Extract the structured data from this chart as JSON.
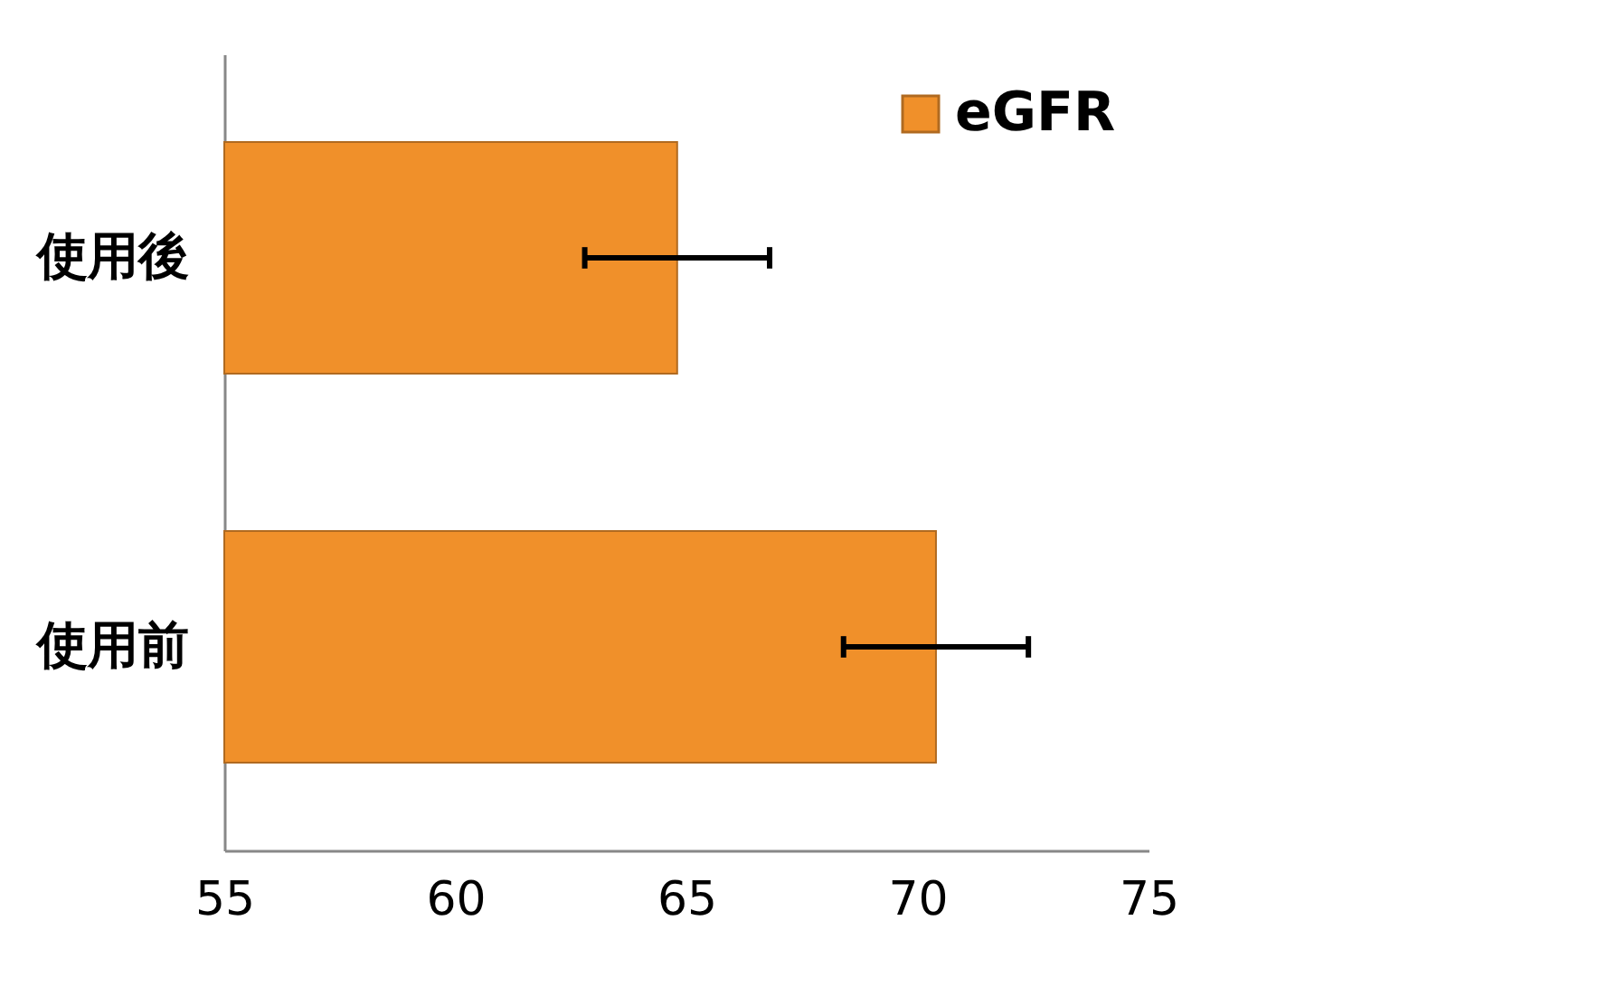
{
  "chart_data": {
    "type": "bar",
    "orientation": "horizontal",
    "categories": [
      "使用後",
      "使用前"
    ],
    "series": [
      {
        "name": "eGFR",
        "color": "#f0902a",
        "values": [
          64.8,
          70.4
        ],
        "errors": [
          2.0,
          2.0
        ]
      }
    ],
    "xlim": [
      55,
      75
    ],
    "xticks": [
      55,
      60,
      65,
      70,
      75
    ],
    "grid": false,
    "legend": "top right"
  }
}
